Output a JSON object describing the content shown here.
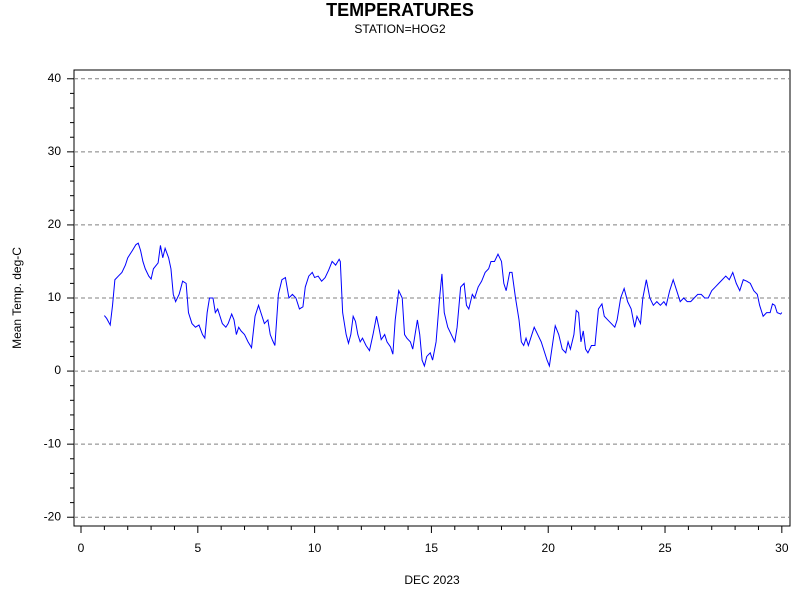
{
  "chart_data": {
    "type": "line",
    "title": "TEMPERATURES",
    "subtitle": "STATION=HOG2",
    "x_label": "DEC 2023",
    "y_label": "Mean Temp. deg-C",
    "color": "#0000ff",
    "grid": true,
    "xlim": [
      -0.3,
      30.35
    ],
    "ylim": [
      -21.2,
      41.2
    ],
    "xticks": [
      0,
      5,
      10,
      15,
      20,
      25,
      30
    ],
    "yticks": [
      -20,
      -10,
      0,
      10,
      20,
      30,
      40
    ],
    "xminorticks": [
      1,
      2,
      3,
      4,
      6,
      7,
      8,
      9,
      11,
      12,
      13,
      14,
      16,
      17,
      18,
      19,
      21,
      22,
      23,
      24,
      26,
      27,
      28,
      29
    ],
    "yminorticks": [
      -18,
      -16,
      -14,
      -12,
      -8,
      -6,
      -4,
      -2,
      2,
      4,
      6,
      8,
      12,
      14,
      16,
      18,
      22,
      24,
      26,
      28,
      32,
      34,
      36,
      38
    ],
    "x": [
      1.0,
      1.1,
      1.25,
      1.35,
      1.45,
      1.6,
      1.75,
      1.9,
      2.0,
      2.1,
      2.2,
      2.35,
      2.45,
      2.55,
      2.65,
      2.75,
      2.9,
      3.0,
      3.1,
      3.3,
      3.4,
      3.5,
      3.6,
      3.75,
      3.85,
      3.95,
      4.05,
      4.2,
      4.35,
      4.5,
      4.6,
      4.75,
      4.9,
      5.05,
      5.2,
      5.3,
      5.4,
      5.5,
      5.65,
      5.75,
      5.85,
      5.95,
      6.05,
      6.2,
      6.3,
      6.45,
      6.55,
      6.65,
      6.75,
      6.85,
      7.0,
      7.15,
      7.3,
      7.45,
      7.6,
      7.7,
      7.85,
      8.0,
      8.1,
      8.2,
      8.3,
      8.45,
      8.6,
      8.75,
      8.9,
      9.05,
      9.2,
      9.35,
      9.5,
      9.6,
      9.75,
      9.9,
      10.0,
      10.15,
      10.3,
      10.45,
      10.6,
      10.75,
      10.9,
      11.05,
      11.1,
      11.2,
      11.35,
      11.45,
      11.55,
      11.65,
      11.75,
      11.85,
      11.95,
      12.05,
      12.2,
      12.35,
      12.5,
      12.65,
      12.75,
      12.85,
      13.0,
      13.1,
      13.25,
      13.35,
      13.45,
      13.6,
      13.75,
      13.85,
      13.95,
      14.1,
      14.2,
      14.3,
      14.4,
      14.5,
      14.6,
      14.7,
      14.8,
      14.95,
      15.05,
      15.2,
      15.35,
      15.45,
      15.55,
      15.7,
      15.85,
      16.0,
      16.1,
      16.25,
      16.4,
      16.5,
      16.6,
      16.75,
      16.85,
      17.0,
      17.15,
      17.3,
      17.45,
      17.55,
      17.7,
      17.85,
      18.0,
      18.1,
      18.2,
      18.35,
      18.45,
      18.6,
      18.75,
      18.85,
      18.95,
      19.05,
      19.15,
      19.25,
      19.4,
      19.55,
      19.7,
      19.8,
      19.95,
      20.05,
      20.2,
      20.3,
      20.45,
      20.6,
      20.75,
      20.85,
      20.95,
      21.1,
      21.2,
      21.3,
      21.4,
      21.5,
      21.6,
      21.7,
      21.85,
      22.0,
      22.15,
      22.3,
      22.4,
      22.55,
      22.7,
      22.85,
      22.95,
      23.1,
      23.25,
      23.4,
      23.55,
      23.7,
      23.8,
      23.95,
      24.05,
      24.2,
      24.35,
      24.5,
      24.65,
      24.8,
      24.95,
      25.05,
      25.2,
      25.35,
      25.5,
      25.65,
      25.8,
      25.95,
      26.1,
      26.25,
      26.4,
      26.55,
      26.7,
      26.85,
      27.0,
      27.15,
      27.3,
      27.45,
      27.6,
      27.75,
      27.9,
      28.05,
      28.2,
      28.35,
      28.5,
      28.65,
      28.8,
      28.95,
      29.05,
      29.2,
      29.35,
      29.5,
      29.6,
      29.7,
      29.8,
      29.95,
      30.0
    ],
    "values": [
      7.6,
      7.2,
      6.3,
      9,
      12.5,
      13,
      13.5,
      14.5,
      15.5,
      16,
      16.5,
      17.3,
      17.5,
      16.5,
      15,
      14,
      13,
      12.6,
      14,
      14.8,
      17.2,
      15.5,
      16.8,
      15.5,
      14,
      10.5,
      9.5,
      10.5,
      12.3,
      12,
      8,
      6.5,
      6,
      6.3,
      5,
      4.5,
      8,
      10,
      10,
      8,
      8.5,
      7.5,
      6.5,
      6,
      6.5,
      7.8,
      7,
      5,
      6,
      5.5,
      5,
      4,
      3.2,
      7.5,
      9,
      8,
      6.5,
      7,
      5,
      4.2,
      3.5,
      10.5,
      12.5,
      12.8,
      10,
      10.5,
      10,
      8.5,
      8.8,
      11.5,
      13,
      13.5,
      12.8,
      13,
      12.3,
      12.8,
      13.8,
      15,
      14.5,
      15.3,
      15,
      8,
      5,
      3.8,
      5,
      7.5,
      6.8,
      5,
      4,
      4.5,
      3.5,
      2.8,
      5,
      7.5,
      6,
      4.3,
      5,
      4,
      3.3,
      2.3,
      7,
      11,
      10,
      5,
      4.5,
      4,
      3,
      5,
      7,
      5,
      1.5,
      0.7,
      2,
      2.5,
      1.5,
      4,
      10,
      13.3,
      8,
      6,
      5,
      4,
      6,
      11.5,
      12,
      9,
      8.5,
      10.5,
      10,
      11.5,
      12.3,
      13.5,
      14,
      15,
      15,
      16,
      15,
      12,
      11,
      13.5,
      13.5,
      10,
      7,
      4,
      3.5,
      4.5,
      3.5,
      4.5,
      6,
      5,
      4,
      3,
      1.5,
      0.7,
      4,
      6.2,
      5,
      3,
      2.5,
      4,
      3,
      5,
      8.3,
      8,
      4,
      5.5,
      3,
      2.5,
      3.5,
      3.5,
      8.5,
      9.2,
      7.5,
      7,
      6.5,
      6,
      7,
      10,
      11.3,
      9.5,
      8.5,
      6,
      7.5,
      6.5,
      10,
      12.5,
      10,
      9,
      9.5,
      9,
      9.5,
      9,
      11,
      12.5,
      11,
      9.5,
      10,
      9.5,
      9.5,
      10,
      10.5,
      10.5,
      10,
      10,
      11,
      11.5,
      12,
      12.5,
      13,
      12.5,
      13.5,
      12,
      11,
      12.5,
      12.3,
      12,
      11,
      10.5,
      9,
      7.5,
      8,
      8,
      9.2,
      9,
      8,
      7.8,
      8
    ]
  }
}
